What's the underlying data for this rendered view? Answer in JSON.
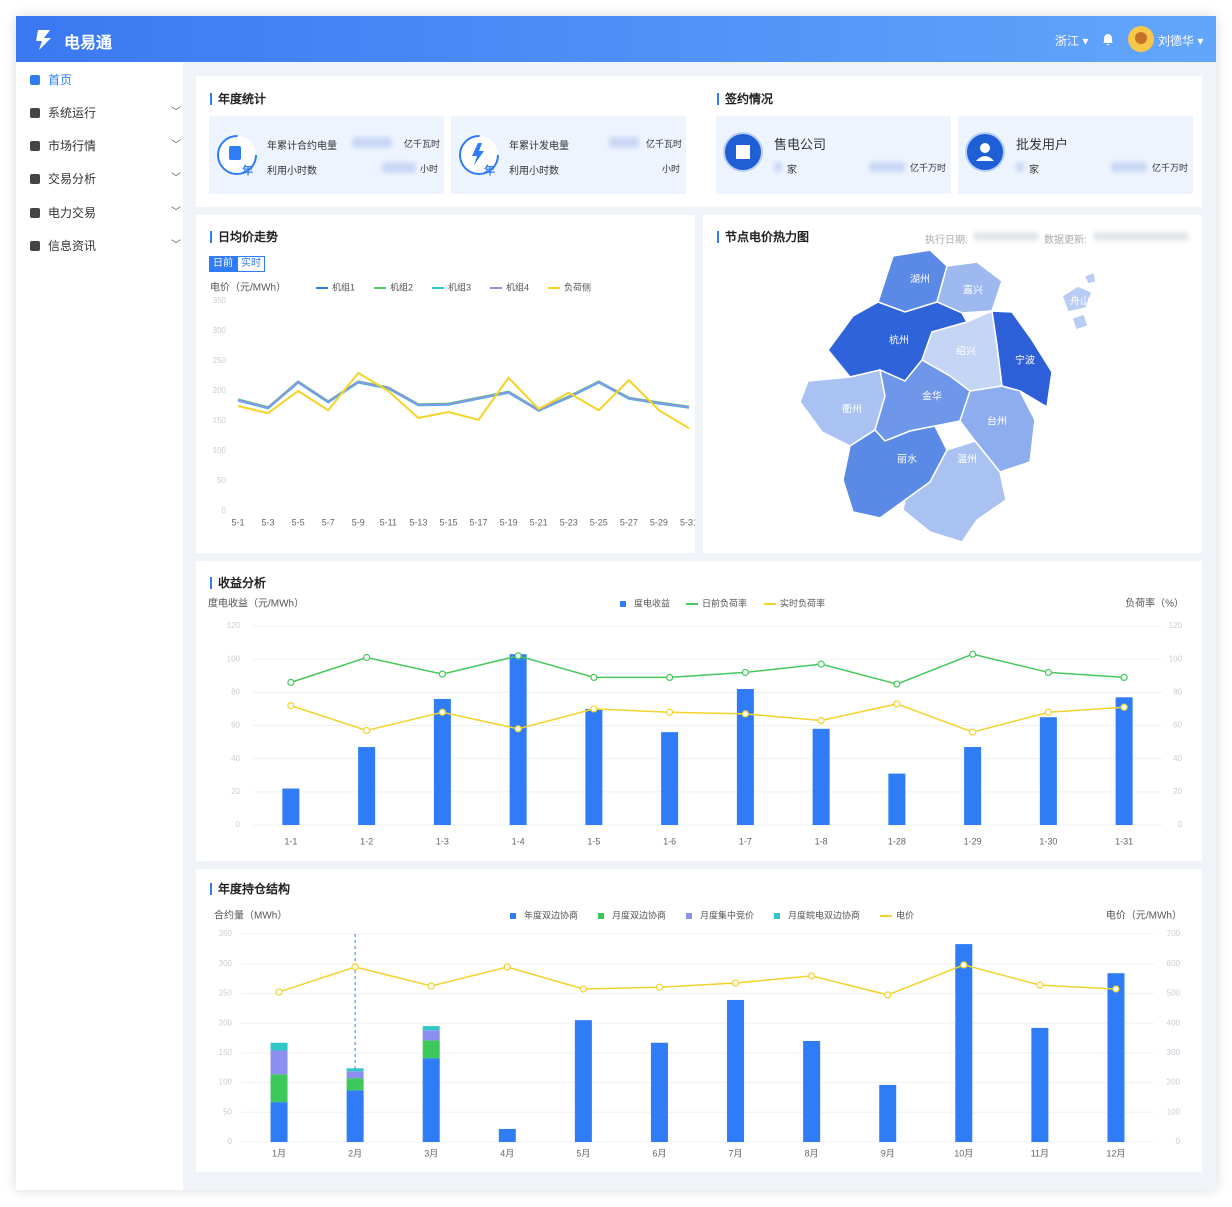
{
  "header": {
    "logo": "电易通",
    "region": "浙江",
    "user": "刘德华"
  },
  "sidebar": {
    "items": [
      "首页",
      "系统运行",
      "市场行情",
      "交易分析",
      "电力交易",
      "信息资讯"
    ]
  },
  "annual": {
    "title": "年度统计",
    "cards": [
      {
        "badge": "年",
        "rows": [
          {
            "label": "年累计合约电量",
            "unit": "亿千瓦时"
          },
          {
            "label": "利用小时数",
            "unit": "小时"
          }
        ]
      },
      {
        "badge": "年",
        "rows": [
          {
            "label": "年累计发电量",
            "unit": "亿千瓦时"
          },
          {
            "label": "利用小时数",
            "unit": "小时"
          }
        ]
      }
    ]
  },
  "signing": {
    "title": "签约情况",
    "cards": [
      {
        "label": "售电公司",
        "count_unit": "家",
        "amount_unit": "亿千万时"
      },
      {
        "label": "批发用户",
        "count_unit": "家",
        "amount_unit": "亿千万时"
      }
    ]
  },
  "map": {
    "title": "节点电价热力图",
    "exec_date_label": "执行日期:",
    "update_label": "数据更新:",
    "regions": [
      "湖州",
      "嘉兴",
      "杭州",
      "绍兴",
      "宁波",
      "舟山",
      "衢州",
      "金华",
      "台州",
      "丽水",
      "温州"
    ]
  },
  "chart_data": [
    {
      "type": "line",
      "title": "日均价走势",
      "tabs": [
        "日前",
        "实时"
      ],
      "y_label": "电价（元/MWh）",
      "categories": [
        "5-1",
        "5-3",
        "5-5",
        "5-7",
        "5-9",
        "5-11",
        "5-13",
        "5-15",
        "5-17",
        "5-19",
        "5-21",
        "5-23",
        "5-25",
        "5-27",
        "5-29",
        "5-31"
      ],
      "ylim": [
        0,
        350
      ],
      "yticks": [
        0,
        50,
        100,
        150,
        200,
        250,
        300,
        350
      ],
      "grid": false,
      "series": [
        {
          "name": "机组1",
          "color": "#2f7de6",
          "values": [
            185,
            172,
            215,
            182,
            215,
            205,
            177,
            178,
            188,
            198,
            168,
            190,
            215,
            188,
            180,
            173
          ]
        },
        {
          "name": "机组2",
          "color": "#4ccf5e",
          "values": [
            186,
            173,
            216,
            183,
            216,
            206,
            178,
            179,
            189,
            199,
            169,
            191,
            216,
            189,
            181,
            174
          ]
        },
        {
          "name": "机组3",
          "color": "#2ec6c8",
          "values": [
            184,
            171,
            214,
            181,
            214,
            204,
            176,
            177,
            187,
            197,
            167,
            189,
            214,
            187,
            179,
            172
          ]
        },
        {
          "name": "机组4",
          "color": "#8c93ef",
          "values": [
            185,
            172,
            215,
            182,
            215,
            205,
            177,
            178,
            188,
            198,
            168,
            190,
            215,
            188,
            180,
            173
          ]
        },
        {
          "name": "负荷侧",
          "color": "#f5d327",
          "values": [
            175,
            163,
            200,
            168,
            230,
            200,
            155,
            165,
            152,
            222,
            170,
            197,
            168,
            218,
            168,
            138
          ]
        }
      ]
    },
    {
      "type": "combo",
      "title": "收益分析",
      "y_label": "度电收益（元/MWh）",
      "y2_label": "负荷率（%）",
      "categories": [
        "1-1",
        "1-2",
        "1-3",
        "1-4",
        "1-5",
        "1-6",
        "1-7",
        "1-8",
        "1-28",
        "1-29",
        "1-30",
        "1-31"
      ],
      "ylim": [
        0,
        120
      ],
      "yticks": [
        0,
        20,
        40,
        60,
        80,
        100,
        120
      ],
      "y2lim": [
        0,
        120
      ],
      "y2ticks": [
        0,
        20,
        40,
        60,
        80,
        100,
        120
      ],
      "grid": true,
      "series": [
        {
          "name": "度电收益",
          "kind": "bar",
          "color": "#2f7cf6",
          "values": [
            22,
            47,
            76,
            103,
            70,
            56,
            82,
            58,
            31,
            47,
            65,
            77
          ]
        },
        {
          "name": "日前负荷率",
          "kind": "line",
          "axis": "y2",
          "color": "#46c85a",
          "values": [
            86,
            101,
            91,
            102,
            89,
            89,
            92,
            97,
            85,
            103,
            92,
            89
          ]
        },
        {
          "name": "实时负荷率",
          "kind": "line",
          "axis": "y2",
          "color": "#f2d22c",
          "values": [
            72,
            57,
            68,
            58,
            70,
            68,
            67,
            63,
            73,
            56,
            68,
            71
          ]
        }
      ]
    },
    {
      "type": "combo",
      "title": "年度持仓结构",
      "y_label": "合约量（MWh）",
      "y2_label": "电价（元/MWh）",
      "categories": [
        "1月",
        "2月",
        "3月",
        "4月",
        "5月",
        "6月",
        "7月",
        "8月",
        "9月",
        "10月",
        "11月",
        "12月"
      ],
      "ylim": [
        0,
        350
      ],
      "yticks": [
        0,
        50,
        100,
        150,
        200,
        250,
        300,
        350
      ],
      "y2lim": [
        0,
        700
      ],
      "y2ticks": [
        0,
        100,
        200,
        300,
        400,
        500,
        600,
        700
      ],
      "grid": true,
      "stacked": true,
      "series": [
        {
          "name": "年度双边协商",
          "kind": "bar",
          "color": "#2f7cf6",
          "values": [
            67,
            87,
            141,
            22,
            205,
            167,
            239,
            170,
            96,
            333,
            192,
            284
          ]
        },
        {
          "name": "月度双边协商",
          "kind": "bar",
          "color": "#3cc85a",
          "values": [
            47,
            20,
            30,
            0,
            0,
            0,
            0,
            0,
            0,
            0,
            0,
            0
          ]
        },
        {
          "name": "月度集中竞价",
          "kind": "bar",
          "color": "#8b8ff0",
          "values": [
            40,
            12,
            17,
            0,
            0,
            0,
            0,
            0,
            0,
            0,
            0,
            0
          ]
        },
        {
          "name": "月度皖电双边协商",
          "kind": "bar",
          "color": "#2ec6c8",
          "values": [
            13,
            5,
            7,
            0,
            0,
            0,
            0,
            0,
            0,
            0,
            0,
            0
          ]
        },
        {
          "name": "电价",
          "kind": "line",
          "axis": "y2",
          "color": "#f2d22c",
          "values": [
            505,
            589,
            525,
            589,
            515,
            521,
            535,
            559,
            495,
            596,
            528,
            515
          ]
        }
      ]
    }
  ]
}
